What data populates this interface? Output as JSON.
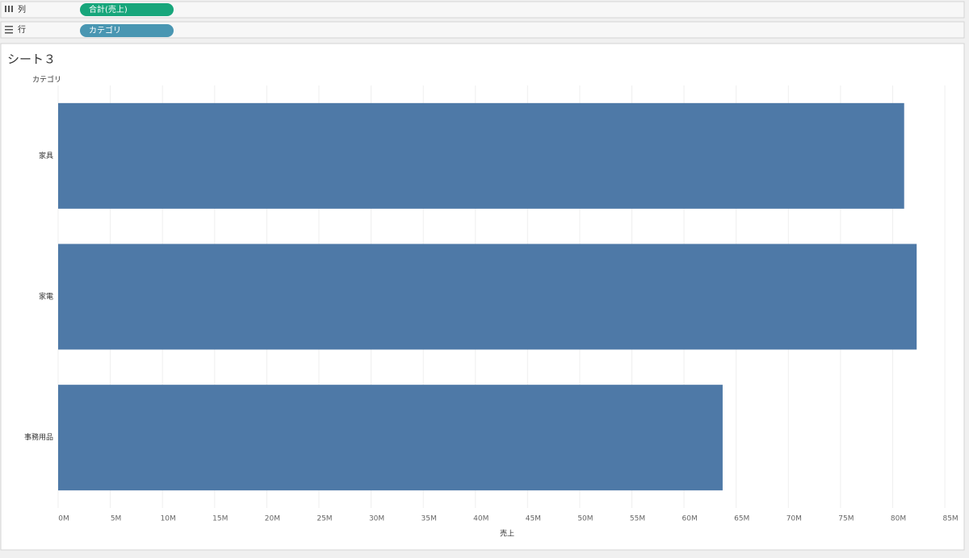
{
  "shelves": {
    "columns": {
      "label": "列",
      "pill": "合計(売上)"
    },
    "rows": {
      "label": "行",
      "pill": "カテゴリ"
    }
  },
  "chart_data": {
    "type": "bar",
    "orientation": "horizontal",
    "title": "シート３",
    "y_label": "カテゴリ",
    "x_label": "売上",
    "categories": [
      "家具",
      "家電",
      "事務用品"
    ],
    "values": [
      81100000,
      82300000,
      63700000
    ],
    "color": "#4e79a7",
    "xlim": [
      0,
      86000000
    ],
    "xticks": [
      {
        "value": 0,
        "label": "0M"
      },
      {
        "value": 5000000,
        "label": "5M"
      },
      {
        "value": 10000000,
        "label": "10M"
      },
      {
        "value": 15000000,
        "label": "15M"
      },
      {
        "value": 20000000,
        "label": "20M"
      },
      {
        "value": 25000000,
        "label": "25M"
      },
      {
        "value": 30000000,
        "label": "30M"
      },
      {
        "value": 35000000,
        "label": "35M"
      },
      {
        "value": 40000000,
        "label": "40M"
      },
      {
        "value": 45000000,
        "label": "45M"
      },
      {
        "value": 50000000,
        "label": "50M"
      },
      {
        "value": 55000000,
        "label": "55M"
      },
      {
        "value": 60000000,
        "label": "60M"
      },
      {
        "value": 65000000,
        "label": "65M"
      },
      {
        "value": 70000000,
        "label": "70M"
      },
      {
        "value": 75000000,
        "label": "75M"
      },
      {
        "value": 80000000,
        "label": "80M"
      },
      {
        "value": 85000000,
        "label": "85M"
      }
    ],
    "grid": true
  }
}
